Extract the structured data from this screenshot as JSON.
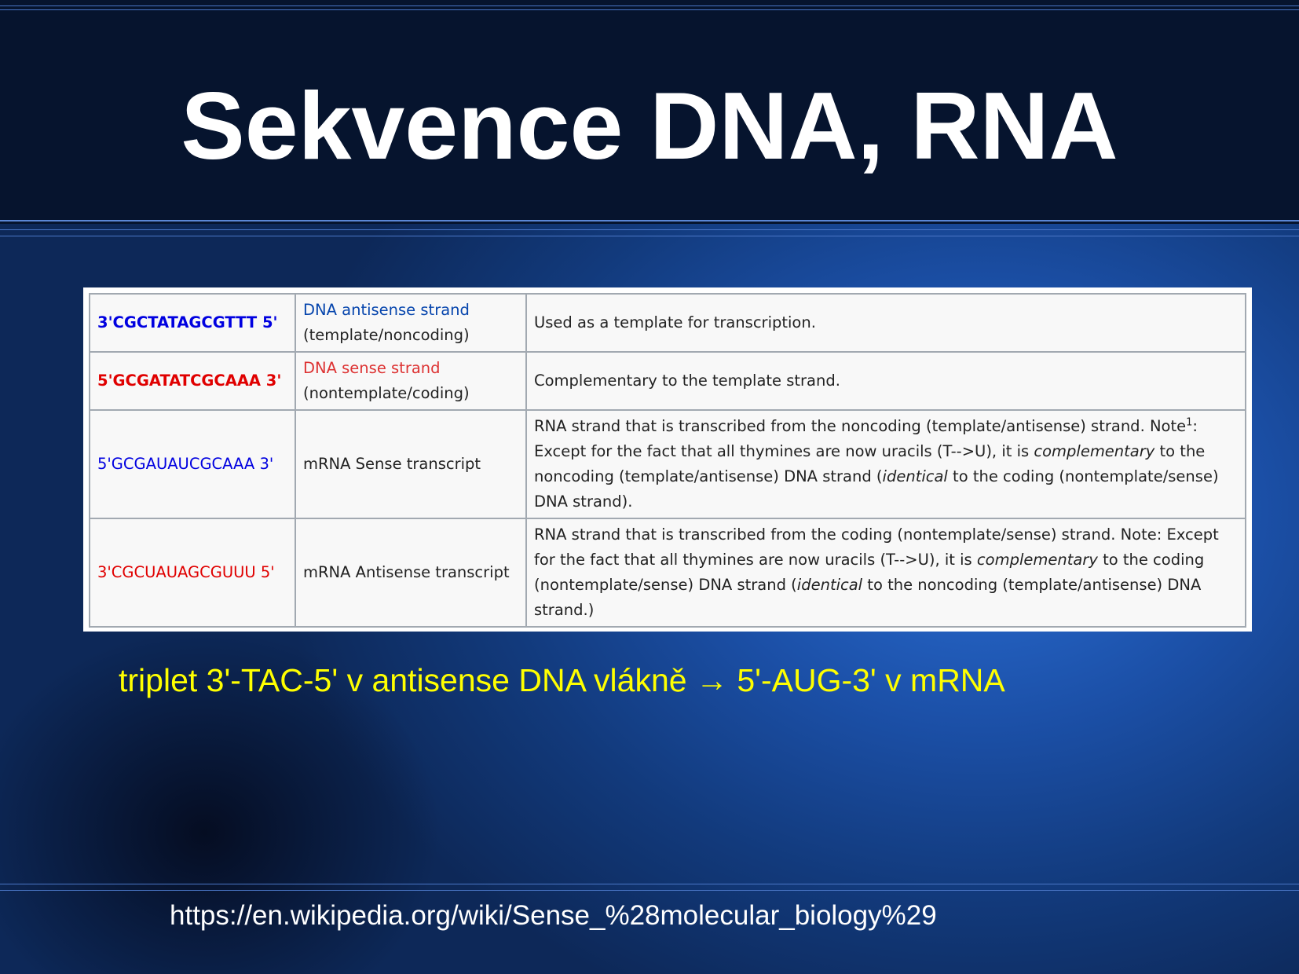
{
  "slide": {
    "title": "Sekvence DNA, RNA",
    "note": "triplet 3'-TAC-5' v antisense DNA vlákně → 5'-AUG-3' v mRNA",
    "url": "https://en.wikipedia.org/wiki/Sense_%28molecular_biology%29"
  },
  "colors": {
    "header_bg": "#06142e",
    "accent_yellow": "#ffff00",
    "antisense_blue": "#0000e0",
    "sense_red": "#e00000"
  },
  "table": {
    "rows": [
      {
        "sequence": "3'CGCTATAGCGTTT 5'",
        "name_link": "DNA antisense strand",
        "name_rest": "(template/noncoding)",
        "desc": [
          {
            "t": "Used as a template for transcription."
          }
        ]
      },
      {
        "sequence": "5'GCGATATCGCAAA 3'",
        "name_link": "DNA sense strand",
        "name_rest": "(nontemplate/coding)",
        "desc": [
          {
            "t": "Complementary to the template strand."
          }
        ]
      },
      {
        "sequence": "5'GCGAUAUCGCAAA 3'",
        "name": "mRNA Sense transcript",
        "desc": [
          {
            "t": "RNA strand that is transcribed from the noncoding (template/antisense) strand. Note"
          },
          {
            "t": "1",
            "sup": true
          },
          {
            "t": ": Except for the fact that all thymines are now uracils (T-->U), it is "
          },
          {
            "t": "complementary",
            "i": true
          },
          {
            "t": " to the noncoding (template/antisense) DNA strand ("
          },
          {
            "t": "identical",
            "i": true
          },
          {
            "t": " to the coding (nontemplate/sense) DNA strand)."
          }
        ]
      },
      {
        "sequence": "3'CGCUAUAGCGUUU 5'",
        "name": "mRNA Antisense transcript",
        "desc": [
          {
            "t": "RNA strand that is transcribed from the coding (nontemplate/sense) strand. Note: Except for the fact that all thymines are now uracils (T-->U), it is "
          },
          {
            "t": "complementary",
            "i": true
          },
          {
            "t": " to the coding (nontemplate/sense) DNA strand ("
          },
          {
            "t": "identical",
            "i": true
          },
          {
            "t": " to the noncoding (template/antisense) DNA strand.)"
          }
        ]
      }
    ]
  }
}
